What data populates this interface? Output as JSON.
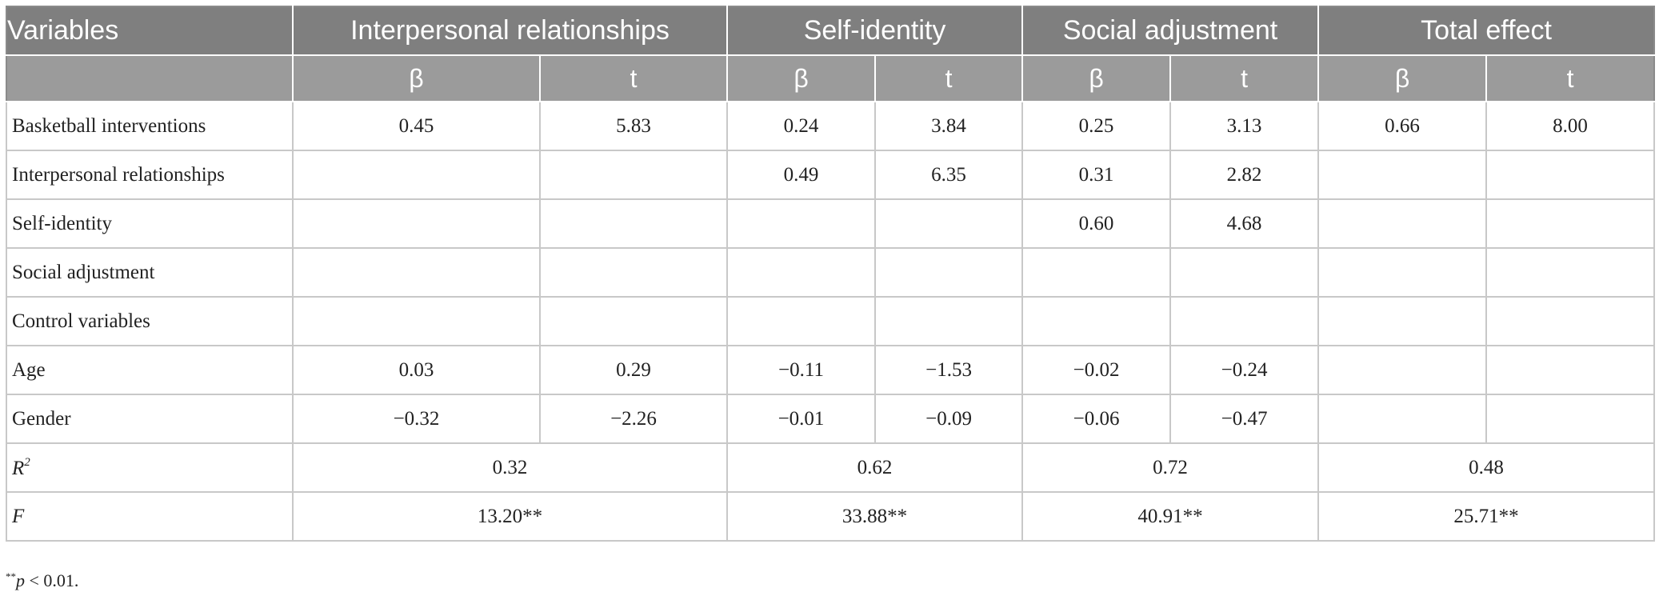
{
  "header": {
    "variables": "Variables",
    "groups": [
      "Interpersonal relationships",
      "Self-identity",
      "Social adjustment",
      "Total effect"
    ],
    "beta": "β",
    "t": "t"
  },
  "rows": [
    {
      "label": "Basketball interventions",
      "ir_b": "0.45",
      "ir_t": "5.83",
      "si_b": "0.24",
      "si_t": "3.84",
      "sa_b": "0.25",
      "sa_t": "3.13",
      "te_b": "0.66",
      "te_t": "8.00"
    },
    {
      "label": "Interpersonal relationships",
      "ir_b": "",
      "ir_t": "",
      "si_b": "0.49",
      "si_t": "6.35",
      "sa_b": "0.31",
      "sa_t": "2.82",
      "te_b": "",
      "te_t": ""
    },
    {
      "label": "Self-identity",
      "ir_b": "",
      "ir_t": "",
      "si_b": "",
      "si_t": "",
      "sa_b": "0.60",
      "sa_t": "4.68",
      "te_b": "",
      "te_t": ""
    },
    {
      "label": "Social adjustment",
      "ir_b": "",
      "ir_t": "",
      "si_b": "",
      "si_t": "",
      "sa_b": "",
      "sa_t": "",
      "te_b": "",
      "te_t": ""
    },
    {
      "label": "Control variables",
      "ir_b": "",
      "ir_t": "",
      "si_b": "",
      "si_t": "",
      "sa_b": "",
      "sa_t": "",
      "te_b": "",
      "te_t": ""
    },
    {
      "label": "Age",
      "ir_b": "0.03",
      "ir_t": "0.29",
      "si_b": "−0.11",
      "si_t": "−1.53",
      "sa_b": "−0.02",
      "sa_t": "−0.24",
      "te_b": "",
      "te_t": ""
    },
    {
      "label": "Gender",
      "ir_b": "−0.32",
      "ir_t": "−2.26",
      "si_b": "−0.01",
      "si_t": "−0.09",
      "sa_b": "−0.06",
      "sa_t": "−0.47",
      "te_b": "",
      "te_t": ""
    }
  ],
  "r2": {
    "label": "R",
    "sup": "2",
    "values": [
      "0.32",
      "0.62",
      "0.72",
      "0.48"
    ]
  },
  "f": {
    "label": "F",
    "values": [
      "13.20**",
      "33.88**",
      "40.91**",
      "25.71**"
    ]
  },
  "footnote": {
    "stars": "**",
    "text": "p",
    "rest": " < 0.01."
  }
}
